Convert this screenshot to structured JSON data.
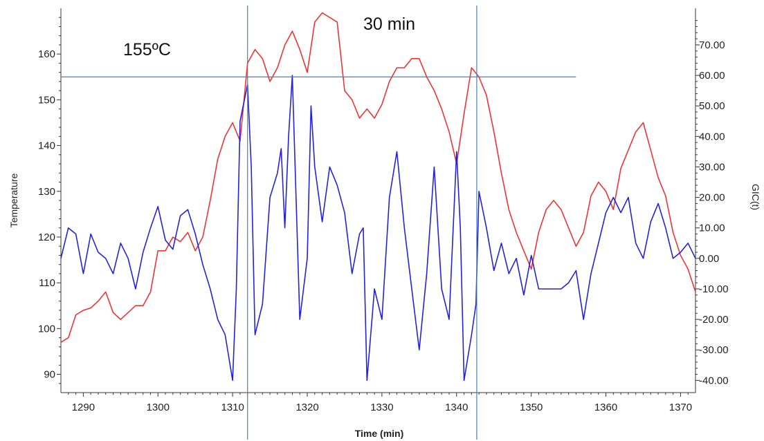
{
  "chart_data": {
    "type": "line",
    "xlabel": "Time (min)",
    "ylabel_left": "Temperature",
    "ylabel_right": "GIC(t)",
    "xlim": [
      1287,
      1372
    ],
    "ylim_left": [
      86,
      170
    ],
    "ylim_right": [
      -44,
      82
    ],
    "grid": false,
    "legend": "none",
    "x_ticks": [
      1290,
      1300,
      1310,
      1320,
      1330,
      1340,
      1350,
      1360,
      1370
    ],
    "y_left_ticks": [
      90,
      100,
      110,
      120,
      130,
      140,
      150,
      160
    ],
    "y_right_ticks": [
      "-40.00",
      "-30.00",
      "-20.00",
      "-10.00",
      "0.00",
      "10.00",
      "20.00",
      "30.00",
      "40.00",
      "50.00",
      "60.00",
      "70.00"
    ],
    "colors": {
      "temperature": "#ee3333",
      "gic": "#2222dd",
      "reference": "#4a7fb5",
      "axes": "#333333"
    },
    "annotations": {
      "temp_label": "155ºC",
      "duration_label": "30 min",
      "threshold_temperature": 155,
      "interval_start": 1312,
      "interval_end": 1342.7,
      "threshold_line_end": 1356
    },
    "series": [
      {
        "axis": "left",
        "color": "#ee3333",
        "x": [
          1287,
          1288,
          1289,
          1290,
          1291,
          1292,
          1293,
          1294,
          1295,
          1296,
          1297,
          1298,
          1299,
          1300,
          1301,
          1302,
          1303,
          1304,
          1305,
          1306,
          1307,
          1308,
          1309,
          1310,
          1311,
          1312,
          1313,
          1314,
          1315,
          1316,
          1317,
          1318,
          1319,
          1320,
          1321,
          1322,
          1323,
          1324,
          1325,
          1326,
          1327,
          1328,
          1329,
          1330,
          1331,
          1332,
          1333,
          1334,
          1335,
          1336,
          1337,
          1338,
          1339,
          1340,
          1341,
          1342,
          1343,
          1344,
          1345,
          1346,
          1347,
          1348,
          1349,
          1350,
          1351,
          1352,
          1353,
          1354,
          1355,
          1356,
          1357,
          1358,
          1359,
          1360,
          1361,
          1362,
          1363,
          1364,
          1365,
          1366,
          1367,
          1368,
          1369,
          1370,
          1371,
          1372
        ],
        "values": [
          97,
          98,
          103,
          104,
          104.5,
          106,
          108,
          103.5,
          102,
          103.5,
          105,
          105,
          108,
          117,
          117,
          120,
          119,
          121,
          117,
          120,
          128,
          137,
          142,
          145,
          141,
          158,
          161,
          159,
          154,
          157,
          162,
          165,
          161,
          156,
          167,
          169,
          168,
          167,
          152,
          150,
          146,
          148,
          146,
          149,
          154,
          157,
          157,
          159,
          159,
          155,
          152,
          148,
          143,
          136,
          147,
          157,
          155,
          151,
          143,
          134,
          126,
          121,
          117,
          113,
          121,
          126,
          128,
          126,
          122,
          118,
          121,
          129,
          132,
          130,
          126,
          135,
          139,
          143,
          145,
          139,
          133,
          129,
          121,
          116,
          113,
          108
        ]
      },
      {
        "axis": "right",
        "color": "#2222dd",
        "x": [
          1287,
          1288,
          1289,
          1290,
          1291,
          1292,
          1293,
          1294,
          1295,
          1296,
          1297,
          1298,
          1299,
          1300,
          1301,
          1302,
          1303,
          1304,
          1305,
          1306,
          1307,
          1308,
          1309,
          1310,
          1310.5,
          1311,
          1312,
          1312.5,
          1313,
          1314,
          1315,
          1316,
          1316.5,
          1317,
          1317.5,
          1318,
          1318.5,
          1319,
          1320,
          1320.5,
          1321,
          1322,
          1323,
          1324,
          1325,
          1326,
          1327,
          1327.5,
          1328,
          1329,
          1330,
          1331,
          1332,
          1333,
          1334,
          1335,
          1336,
          1337,
          1338,
          1339,
          1340,
          1340.5,
          1341,
          1342,
          1342.6,
          1343,
          1344,
          1345,
          1346,
          1347,
          1348,
          1349,
          1350,
          1351,
          1352,
          1353,
          1354,
          1355,
          1356,
          1357,
          1358,
          1359,
          1360,
          1361,
          1362,
          1363,
          1364,
          1365,
          1366,
          1367,
          1368,
          1369,
          1370,
          1371,
          1372
        ],
        "values": [
          0,
          10,
          8,
          -5,
          8,
          2,
          0,
          -5,
          5,
          0,
          -10,
          2,
          10,
          17,
          6,
          3,
          14,
          16,
          8,
          -2,
          -10,
          -20,
          -25,
          -40,
          -10,
          45,
          57,
          30,
          -25,
          -15,
          20,
          28,
          36,
          10,
          40,
          60,
          20,
          -20,
          0,
          50,
          30,
          12,
          30,
          24,
          15,
          -5,
          8,
          10,
          -40,
          -10,
          -20,
          20,
          35,
          10,
          -10,
          -30,
          -5,
          30,
          -10,
          -20,
          35,
          10,
          -40,
          -25,
          -15,
          22,
          10,
          -4,
          5,
          -5,
          0,
          -12,
          1,
          -10,
          -10,
          -10,
          -10,
          -8,
          -4,
          -20,
          -5,
          5,
          15,
          20,
          15,
          20,
          5,
          0,
          12,
          18,
          10,
          0,
          2,
          5,
          0
        ]
      }
    ]
  }
}
